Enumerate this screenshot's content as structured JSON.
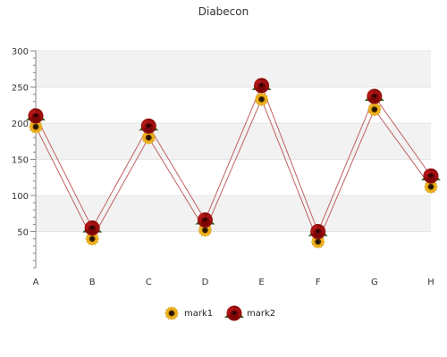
{
  "chart_data": {
    "type": "line",
    "title": "Diabecon",
    "xlabel": "",
    "ylabel": "",
    "categories": [
      "A",
      "B",
      "C",
      "D",
      "E",
      "F",
      "G",
      "H"
    ],
    "ylim": [
      0,
      300
    ],
    "yticks": [
      50,
      100,
      150,
      200,
      250,
      300
    ],
    "grid": true,
    "legend_position": "bottom",
    "series": [
      {
        "name": "mark1",
        "values": [
          195,
          40,
          180,
          52,
          233,
          36,
          219,
          112
        ],
        "color": "#c06060",
        "marker": "sunflower-icon"
      },
      {
        "name": "mark2",
        "values": [
          210,
          55,
          196,
          66,
          252,
          50,
          237,
          127
        ],
        "color": "#c06060",
        "marker": "rose-icon"
      }
    ],
    "colors": {
      "band": "#f2f2f2",
      "gridline": "#e4e4e4",
      "axis": "#888888"
    }
  }
}
